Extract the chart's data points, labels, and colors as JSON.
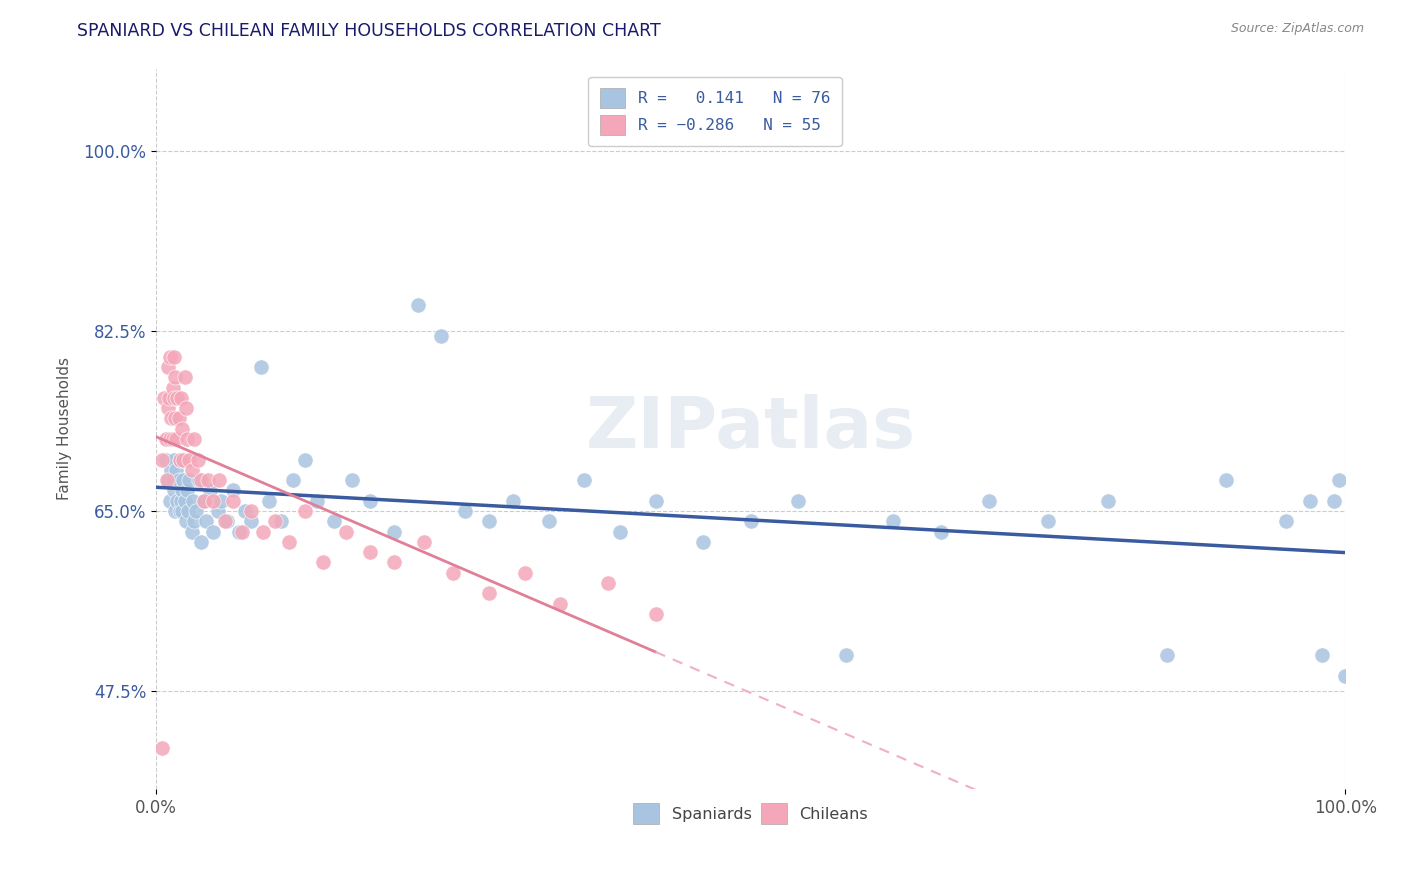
{
  "title": "SPANIARD VS CHILEAN FAMILY HOUSEHOLDS CORRELATION CHART",
  "source_text": "Source: ZipAtlas.com",
  "ylabel": "Family Households",
  "xlim": [
    0.0,
    1.0
  ],
  "ylim": [
    0.38,
    1.08
  ],
  "xticks": [
    0.0,
    1.0
  ],
  "xticklabels": [
    "0.0%",
    "100.0%"
  ],
  "ytick_positions": [
    0.475,
    0.65,
    0.825,
    1.0
  ],
  "ytick_labels": [
    "47.5%",
    "65.0%",
    "82.5%",
    "100.0%"
  ],
  "watermark": "ZIPatlas",
  "spaniard_color": "#a8c4e0",
  "chilean_color": "#f4a7b9",
  "spaniard_line_color": "#3a5ba0",
  "chilean_line_color": "#e08098",
  "chilean_line_dashed_color": "#f0b0c0",
  "grid_color": "#cccccc",
  "background_color": "#ffffff",
  "spaniards_x": [
    0.008,
    0.01,
    0.01,
    0.012,
    0.013,
    0.014,
    0.015,
    0.015,
    0.016,
    0.017,
    0.018,
    0.019,
    0.02,
    0.02,
    0.021,
    0.022,
    0.022,
    0.023,
    0.024,
    0.025,
    0.026,
    0.027,
    0.028,
    0.03,
    0.031,
    0.032,
    0.034,
    0.036,
    0.038,
    0.04,
    0.042,
    0.045,
    0.048,
    0.052,
    0.055,
    0.06,
    0.065,
    0.07,
    0.075,
    0.08,
    0.088,
    0.095,
    0.105,
    0.115,
    0.125,
    0.135,
    0.15,
    0.165,
    0.18,
    0.2,
    0.22,
    0.24,
    0.26,
    0.28,
    0.3,
    0.33,
    0.36,
    0.39,
    0.42,
    0.46,
    0.5,
    0.54,
    0.58,
    0.62,
    0.66,
    0.7,
    0.75,
    0.8,
    0.85,
    0.9,
    0.95,
    0.97,
    0.98,
    0.99,
    0.995,
    1.0
  ],
  "spaniards_y": [
    0.7,
    0.68,
    0.72,
    0.66,
    0.69,
    0.68,
    0.67,
    0.7,
    0.65,
    0.69,
    0.66,
    0.68,
    0.65,
    0.7,
    0.66,
    0.67,
    0.65,
    0.68,
    0.66,
    0.64,
    0.67,
    0.65,
    0.68,
    0.63,
    0.66,
    0.64,
    0.65,
    0.68,
    0.62,
    0.66,
    0.64,
    0.67,
    0.63,
    0.65,
    0.66,
    0.64,
    0.67,
    0.63,
    0.65,
    0.64,
    0.79,
    0.66,
    0.64,
    0.68,
    0.7,
    0.66,
    0.64,
    0.68,
    0.66,
    0.63,
    0.85,
    0.82,
    0.65,
    0.64,
    0.66,
    0.64,
    0.68,
    0.63,
    0.66,
    0.62,
    0.64,
    0.66,
    0.51,
    0.64,
    0.63,
    0.66,
    0.64,
    0.66,
    0.51,
    0.68,
    0.64,
    0.66,
    0.51,
    0.66,
    0.68,
    0.49
  ],
  "chileans_x": [
    0.005,
    0.007,
    0.008,
    0.009,
    0.01,
    0.01,
    0.011,
    0.012,
    0.012,
    0.013,
    0.014,
    0.014,
    0.015,
    0.015,
    0.016,
    0.016,
    0.017,
    0.018,
    0.019,
    0.02,
    0.021,
    0.022,
    0.023,
    0.024,
    0.025,
    0.026,
    0.028,
    0.03,
    0.032,
    0.035,
    0.038,
    0.04,
    0.044,
    0.048,
    0.053,
    0.058,
    0.065,
    0.072,
    0.08,
    0.09,
    0.1,
    0.112,
    0.125,
    0.14,
    0.16,
    0.18,
    0.2,
    0.225,
    0.25,
    0.28,
    0.31,
    0.34,
    0.38,
    0.42,
    0.005
  ],
  "chileans_y": [
    0.7,
    0.76,
    0.72,
    0.68,
    0.75,
    0.79,
    0.76,
    0.72,
    0.8,
    0.74,
    0.77,
    0.72,
    0.76,
    0.8,
    0.74,
    0.78,
    0.72,
    0.76,
    0.74,
    0.7,
    0.76,
    0.73,
    0.7,
    0.78,
    0.75,
    0.72,
    0.7,
    0.69,
    0.72,
    0.7,
    0.68,
    0.66,
    0.68,
    0.66,
    0.68,
    0.64,
    0.66,
    0.63,
    0.65,
    0.63,
    0.64,
    0.62,
    0.65,
    0.6,
    0.63,
    0.61,
    0.6,
    0.62,
    0.59,
    0.57,
    0.59,
    0.56,
    0.58,
    0.55,
    0.42
  ]
}
